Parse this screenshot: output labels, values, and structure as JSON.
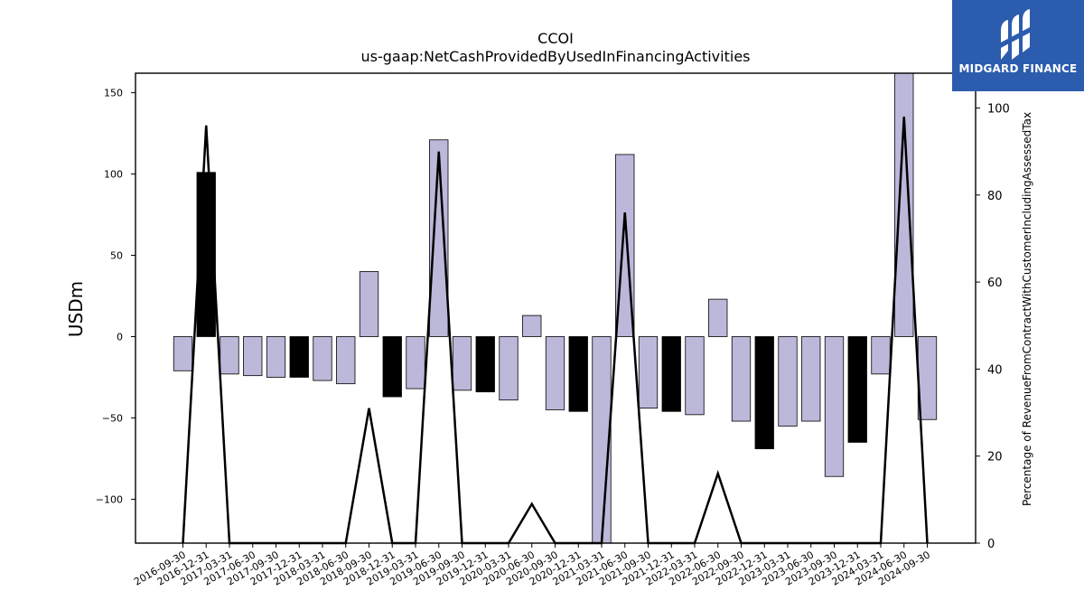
{
  "chart_data": {
    "type": "bar",
    "title": "CCOI",
    "subtitle": "us-gaap:NetCashProvidedByUsedInFinancingActivities",
    "ylabel": "USDm",
    "y2label": "Percentage of RevenueFromContractWithCustomerIncludingAssessedTax",
    "ylim": [
      -127,
      162
    ],
    "y2lim": [
      0,
      108
    ],
    "yticks": [
      -100,
      -50,
      0,
      50,
      100,
      150
    ],
    "y2ticks": [
      0,
      20,
      40,
      60,
      80,
      100
    ],
    "categories": [
      "2016-09-30",
      "2016-12-31",
      "2017-03-31",
      "2017-06-30",
      "2017-09-30",
      "2017-12-31",
      "2018-03-31",
      "2018-06-30",
      "2018-09-30",
      "2018-12-31",
      "2019-03-31",
      "2019-06-30",
      "2019-09-30",
      "2019-12-31",
      "2020-03-31",
      "2020-06-30",
      "2020-09-30",
      "2020-12-31",
      "2021-03-31",
      "2021-06-30",
      "2021-09-30",
      "2021-12-31",
      "2022-03-31",
      "2022-06-30",
      "2022-09-30",
      "2022-12-31",
      "2023-03-31",
      "2023-06-30",
      "2023-09-30",
      "2023-12-31",
      "2024-03-31",
      "2024-06-30",
      "2024-09-30"
    ],
    "series": [
      {
        "kind": "bar",
        "values": [
          -21,
          101,
          -23,
          -24,
          -25,
          -25,
          -27,
          -29,
          40,
          -37,
          -32,
          121,
          -33,
          -34,
          -39,
          13,
          -45,
          -46,
          -127,
          112,
          -44,
          -46,
          -48,
          23,
          -52,
          -69,
          -55,
          -52,
          -86,
          -65,
          -23,
          162,
          -51
        ],
        "highlight": [
          false,
          true,
          false,
          false,
          false,
          true,
          false,
          false,
          false,
          true,
          false,
          false,
          false,
          true,
          false,
          false,
          false,
          true,
          false,
          false,
          false,
          true,
          false,
          false,
          false,
          true,
          false,
          false,
          false,
          true,
          false,
          false,
          false
        ]
      },
      {
        "kind": "line",
        "axis": "right",
        "values": [
          0,
          96,
          0,
          0,
          0,
          0,
          0,
          0,
          31,
          0,
          0,
          90,
          0,
          0,
          0,
          9,
          0,
          0,
          0,
          76,
          0,
          0,
          0,
          16,
          0,
          0,
          0,
          0,
          0,
          0,
          0,
          98,
          0
        ]
      }
    ],
    "colors": {
      "bar": "#bcb8da",
      "bar_highlight": "#000000",
      "line": "#000000"
    }
  },
  "brand": {
    "name": "MIDGARD FINANCE",
    "color": "#2b5cad"
  }
}
